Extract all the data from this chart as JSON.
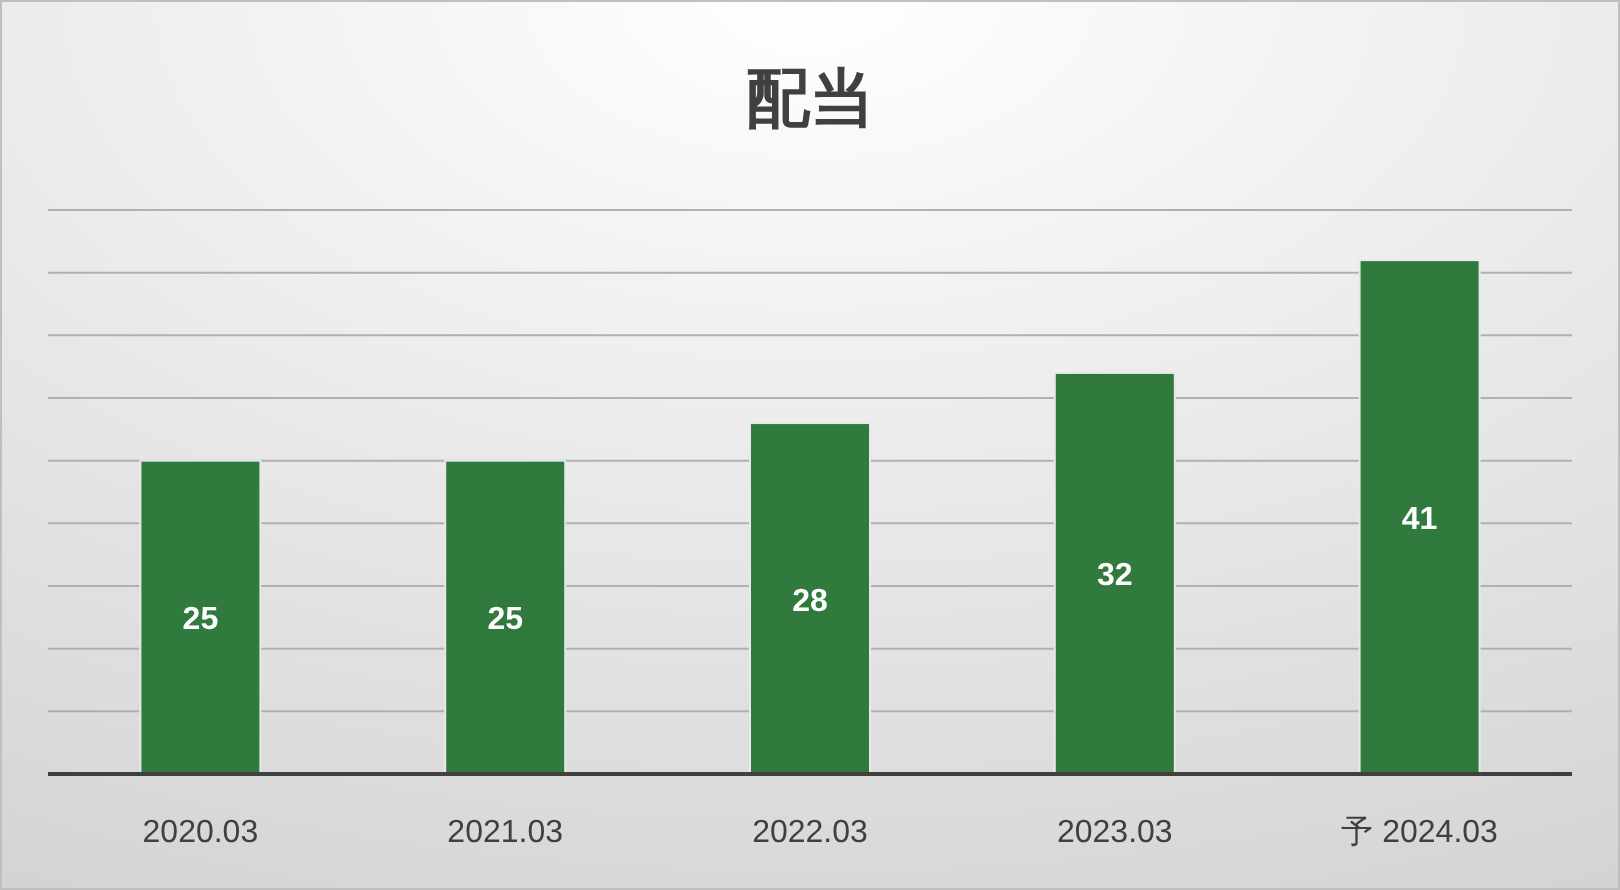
{
  "chart_data": {
    "type": "bar",
    "title": "配当",
    "categories": [
      "2020.03",
      "2021.03",
      "2022.03",
      "2023.03",
      "予 2024.03"
    ],
    "values": [
      25,
      25,
      28,
      32,
      41
    ],
    "color": "#317a3e",
    "data_labels": true,
    "ylim": [
      0,
      45
    ],
    "yticks": [
      {
        "value": 0,
        "label": null
      },
      {
        "value": 5,
        "label": null
      },
      {
        "value": 10,
        "label": null
      },
      {
        "value": 15,
        "label": null
      },
      {
        "value": 20,
        "label": null
      },
      {
        "value": 25,
        "label": null
      },
      {
        "value": 30,
        "label": null
      },
      {
        "value": 35,
        "label": null
      },
      {
        "value": 40,
        "label": null
      },
      {
        "value": 45,
        "label": null
      }
    ],
    "grid": "y",
    "tick_labels": "x"
  }
}
